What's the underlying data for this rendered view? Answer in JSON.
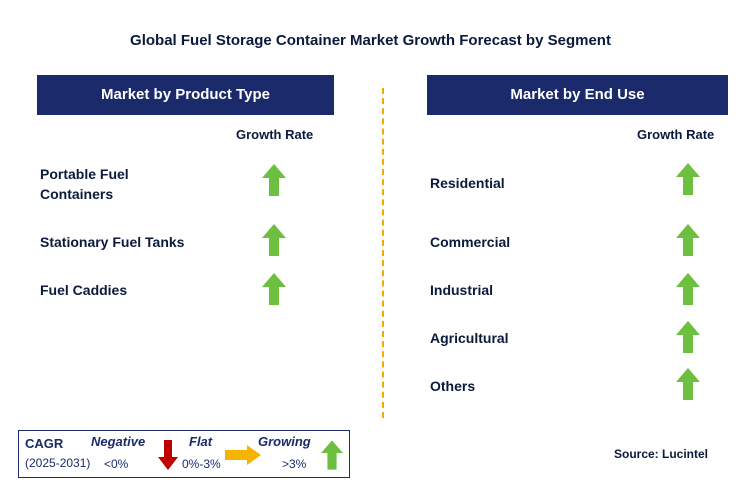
{
  "title": "Global Fuel Storage Container Market Growth Forecast by Segment",
  "left_panel": {
    "header": "Market by Product Type",
    "column_header": "Growth Rate",
    "rows": [
      {
        "label_line1": "Portable Fuel",
        "label_line2": "Containers",
        "trend": "growing"
      },
      {
        "label": "Stationary Fuel Tanks",
        "trend": "growing"
      },
      {
        "label": "Fuel Caddies",
        "trend": "growing"
      }
    ]
  },
  "right_panel": {
    "header": "Market by End Use",
    "column_header": "Growth Rate",
    "rows": [
      {
        "label": "Residential",
        "trend": "growing"
      },
      {
        "label": "Commercial",
        "trend": "growing"
      },
      {
        "label": "Industrial",
        "trend": "growing"
      },
      {
        "label": "Agricultural",
        "trend": "growing"
      },
      {
        "label": "Others",
        "trend": "growing"
      }
    ]
  },
  "legend": {
    "cagr_label": "CAGR",
    "period": "(2025-2031)",
    "negative_label": "Negative",
    "negative_range": "<0%",
    "flat_label": "Flat",
    "flat_range": "0%-3%",
    "growing_label": "Growing",
    "growing_range": ">3%"
  },
  "source": "Source: Lucintel",
  "colors": {
    "header_bg": "#1b2a6b",
    "growing_arrow": "#6dbf3f",
    "negative_arrow": "#c00000",
    "flat_arrow": "#f5b400",
    "divider": "#f2a900"
  }
}
